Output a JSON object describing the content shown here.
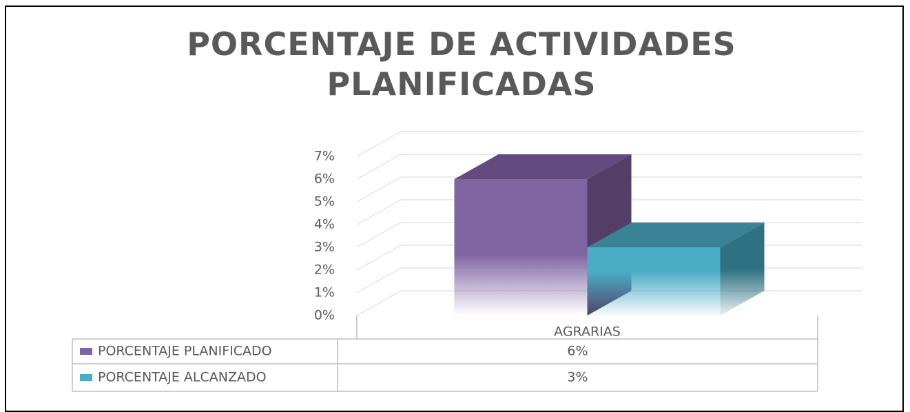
{
  "chart_data": {
    "type": "bar3d",
    "title": "PORCENTAJE DE ACTIVIDADES PLANIFICADAS",
    "categories": [
      "AGRARIAS"
    ],
    "series": [
      {
        "name": "PORCENTAJE PLANIFICADO",
        "color": "#8064a2",
        "values": [
          6
        ],
        "value_labels": [
          "6%"
        ]
      },
      {
        "name": "PORCENTAJE ALCANZADO",
        "color": "#4bacc6",
        "values": [
          3
        ],
        "value_labels": [
          "3%"
        ]
      }
    ],
    "ylim": [
      0,
      7
    ],
    "yticks": [
      {
        "value": 0,
        "label": "0%"
      },
      {
        "value": 1,
        "label": "1%"
      },
      {
        "value": 2,
        "label": "2%"
      },
      {
        "value": 3,
        "label": "3%"
      },
      {
        "value": 4,
        "label": "4%"
      },
      {
        "value": 5,
        "label": "5%"
      },
      {
        "value": 6,
        "label": "6%"
      },
      {
        "value": 7,
        "label": "7%"
      }
    ],
    "grid": true
  }
}
